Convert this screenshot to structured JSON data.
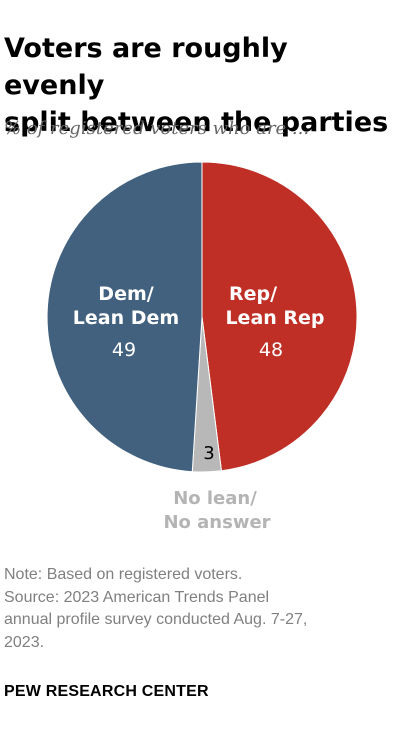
{
  "title_lines": [
    "Voters are roughly evenly",
    "split between the parties"
  ],
  "subtitle": "% of registered voters who are ...",
  "chart_data": {
    "type": "pie",
    "categories": [
      "Rep/Lean Rep",
      "No lean/No answer",
      "Dem/Lean Dem"
    ],
    "values": [
      48,
      3,
      49
    ],
    "colors": [
      "#bf2f26",
      "#b8b8b8",
      "#42617f"
    ],
    "labels": {
      "rep": {
        "line1": "Rep/",
        "line2": "Lean Rep",
        "value": "48"
      },
      "dem": {
        "line1": "Dem/",
        "line2": "Lean Dem",
        "value": "49"
      },
      "none": {
        "line1": "No lean/",
        "line2": "No answer",
        "value": "3"
      }
    }
  },
  "note_lines": [
    "Note: Based on registered voters.",
    "Source: 2023 American Trends Panel",
    "annual profile survey conducted Aug. 7-27,",
    "2023."
  ],
  "brand": "PEW RESEARCH CENTER"
}
